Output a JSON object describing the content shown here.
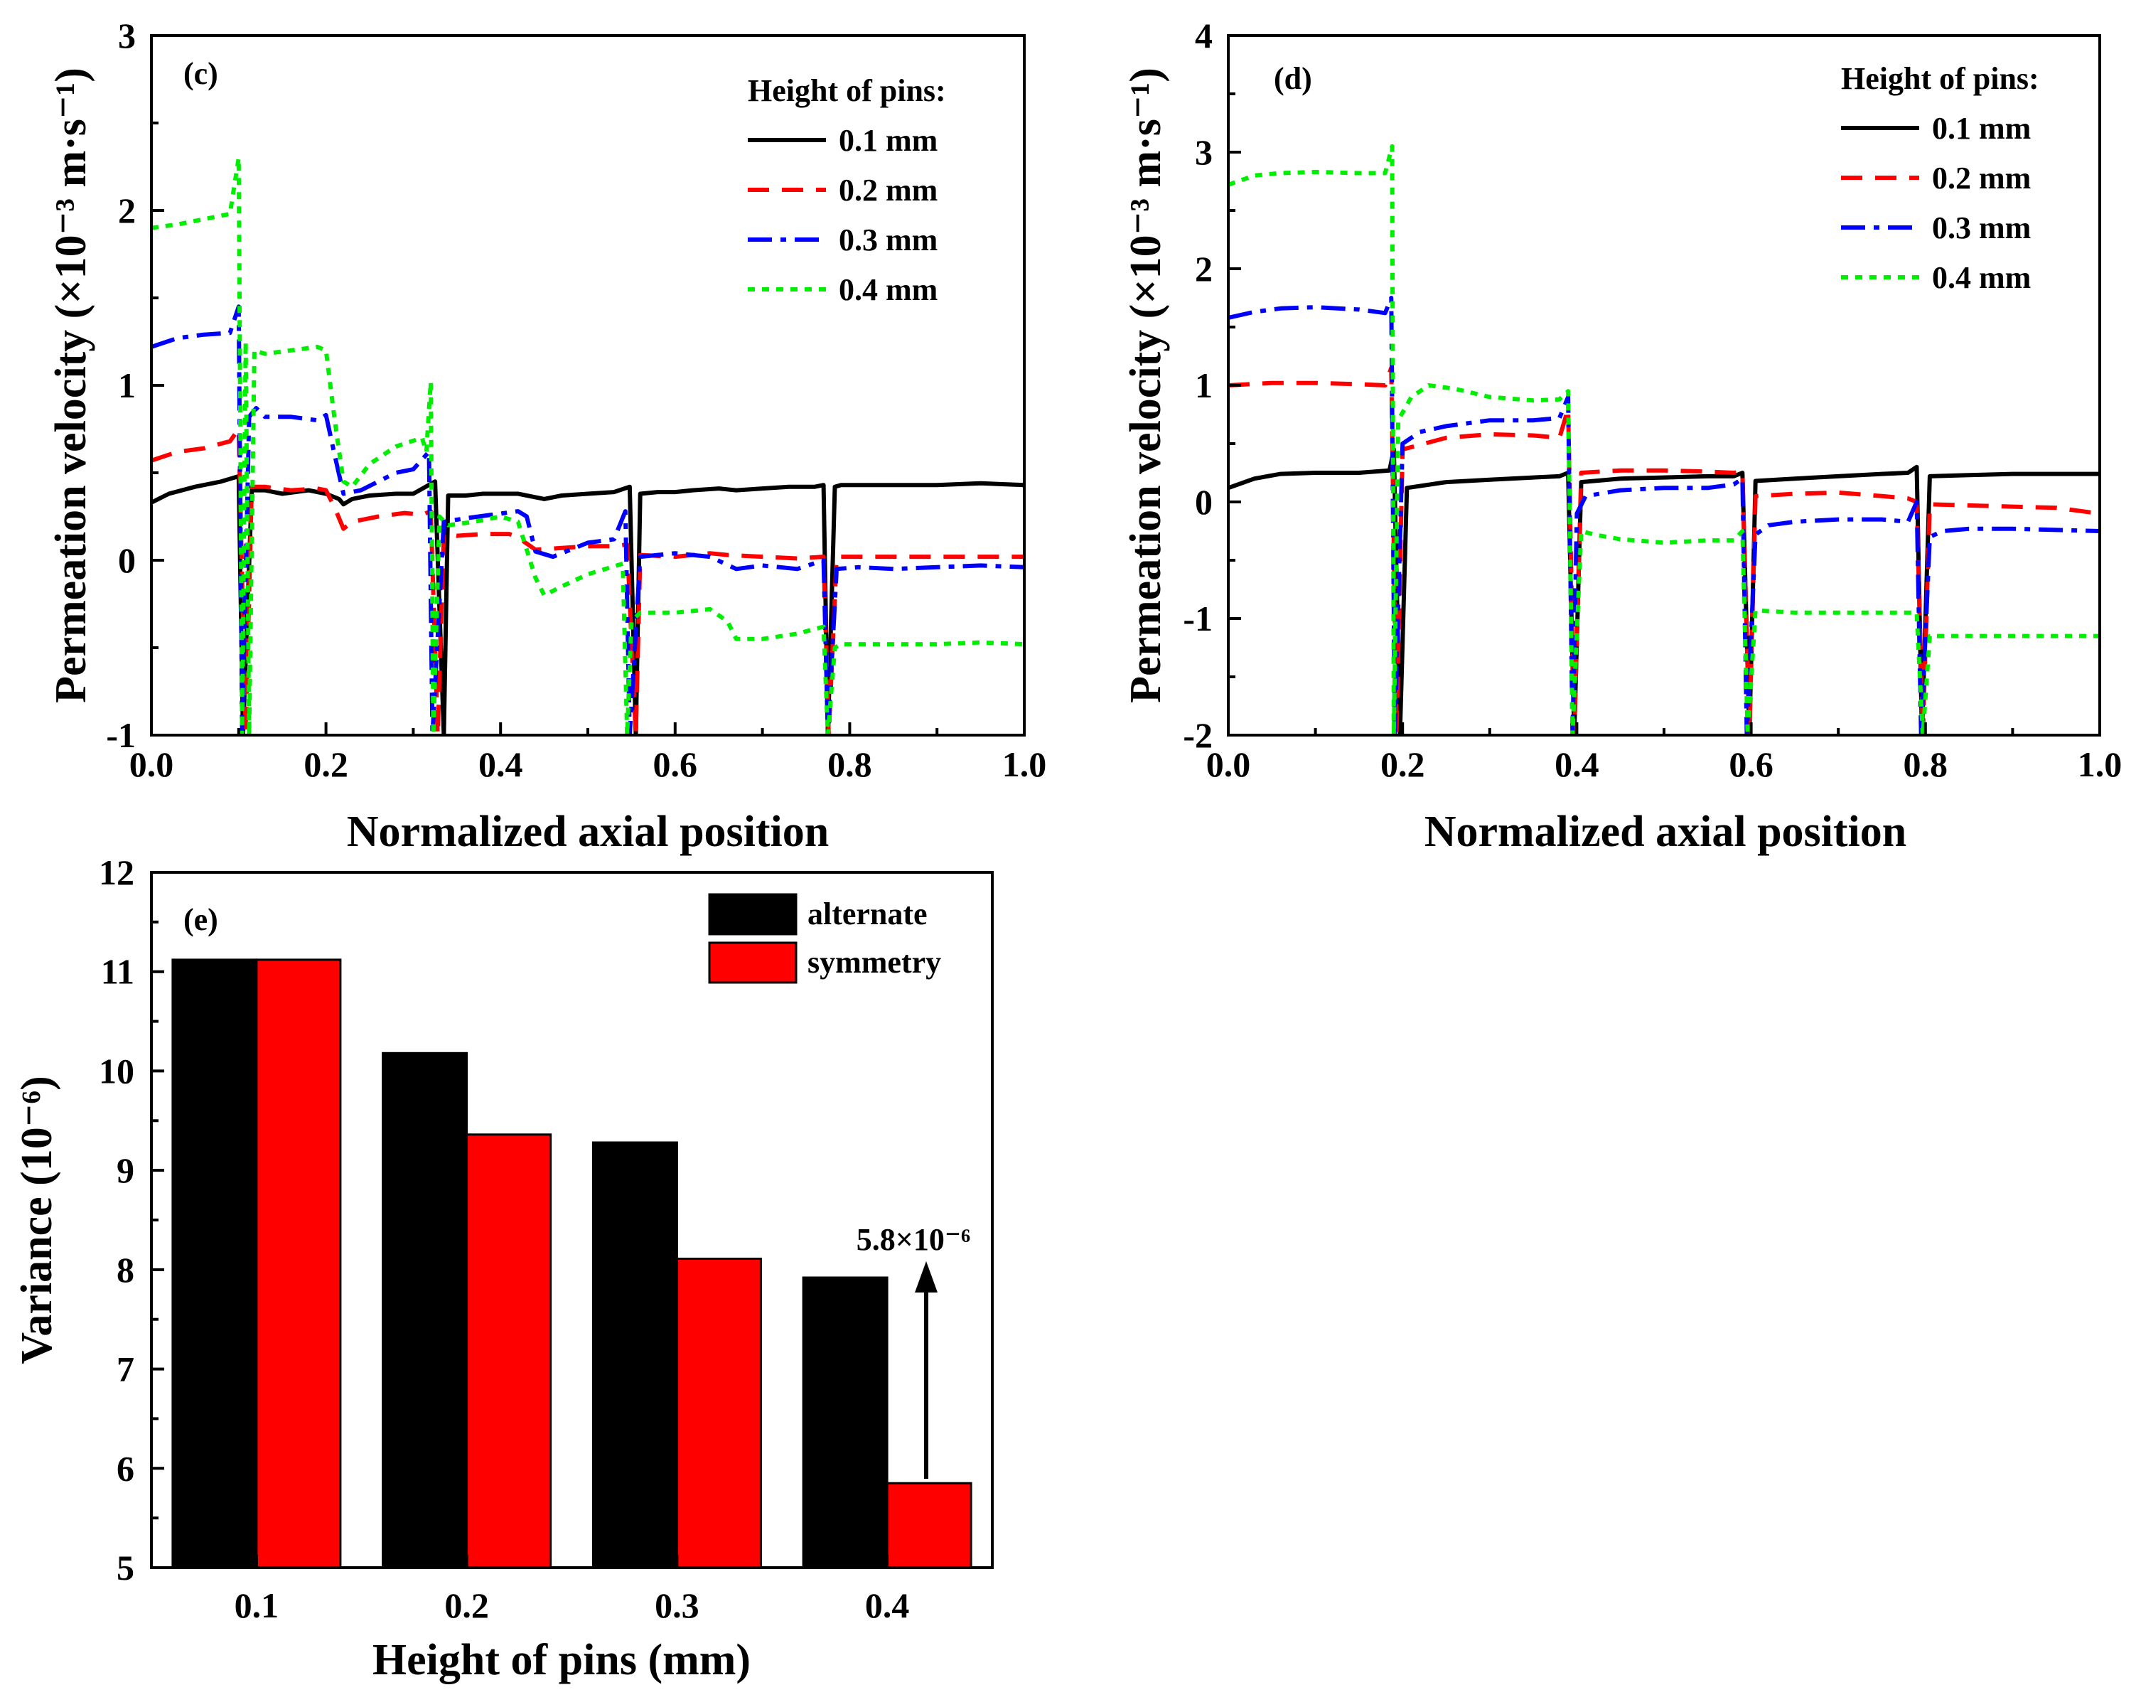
{
  "chart_data": [
    {
      "id": "c",
      "type": "line",
      "panel_label": "(c)",
      "xlabel": "Normalized axial position",
      "ylabel": "Permeation velocity (×10⁻³ m·s⁻¹)",
      "xlim": [
        0,
        1
      ],
      "ylim": [
        -1,
        3
      ],
      "xticks": [
        "0.0",
        "0.2",
        "0.4",
        "0.6",
        "0.8",
        "1.0"
      ],
      "yticks": [
        "-1",
        "0",
        "1",
        "2",
        "3"
      ],
      "legend_title": "Height of pins:",
      "legend_position": "top-right",
      "series": [
        {
          "name": "0.1 mm",
          "color": "#000000",
          "dash": "solid",
          "x": [
            0.0,
            0.02,
            0.05,
            0.08,
            0.1,
            0.105,
            0.115,
            0.13,
            0.15,
            0.18,
            0.2,
            0.215,
            0.22,
            0.23,
            0.25,
            0.28,
            0.3,
            0.325,
            0.335,
            0.34,
            0.36,
            0.38,
            0.4,
            0.42,
            0.44,
            0.45,
            0.47,
            0.5,
            0.53,
            0.548,
            0.555,
            0.56,
            0.58,
            0.6,
            0.62,
            0.65,
            0.67,
            0.7,
            0.73,
            0.76,
            0.77,
            0.775,
            0.783,
            0.79,
            0.8,
            0.85,
            0.9,
            0.95,
            1.0
          ],
          "y": [
            0.33,
            0.38,
            0.42,
            0.45,
            0.48,
            -1,
            0.4,
            0.4,
            0.38,
            0.4,
            0.38,
            0.35,
            0.32,
            0.35,
            0.37,
            0.38,
            0.38,
            0.45,
            -1,
            0.37,
            0.37,
            0.38,
            0.38,
            0.38,
            0.36,
            0.35,
            0.37,
            0.38,
            0.39,
            0.42,
            -1,
            0.38,
            0.39,
            0.39,
            0.4,
            0.41,
            0.4,
            0.41,
            0.42,
            0.42,
            0.43,
            -1,
            0.42,
            0.43,
            0.43,
            0.43,
            0.43,
            0.44,
            0.43
          ]
        },
        {
          "name": "0.2 mm",
          "color": "#ff0000",
          "dash": "dash",
          "x": [
            0.0,
            0.03,
            0.06,
            0.09,
            0.1,
            0.108,
            0.115,
            0.13,
            0.16,
            0.19,
            0.2,
            0.21,
            0.22,
            0.23,
            0.26,
            0.29,
            0.31,
            0.32,
            0.328,
            0.335,
            0.35,
            0.38,
            0.41,
            0.42,
            0.44,
            0.47,
            0.5,
            0.53,
            0.545,
            0.555,
            0.56,
            0.6,
            0.64,
            0.66,
            0.7,
            0.74,
            0.77,
            0.776,
            0.785,
            0.8,
            0.85,
            0.9,
            0.95,
            1.0
          ],
          "y": [
            0.57,
            0.62,
            0.64,
            0.68,
            0.75,
            -1,
            0.42,
            0.42,
            0.4,
            0.41,
            0.4,
            0.3,
            0.18,
            0.22,
            0.25,
            0.27,
            0.26,
            0.28,
            -1,
            0.15,
            0.14,
            0.15,
            0.15,
            0.13,
            0.06,
            0.07,
            0.08,
            0.08,
            0.09,
            -1,
            0.03,
            0.02,
            0.04,
            0.03,
            0.02,
            0.01,
            0.02,
            -1,
            0.02,
            0.02,
            0.02,
            0.02,
            0.02,
            0.02
          ]
        },
        {
          "name": "0.3 mm",
          "color": "#0000ff",
          "dash": "dashdot",
          "x": [
            0.0,
            0.03,
            0.06,
            0.09,
            0.1,
            0.104,
            0.112,
            0.12,
            0.13,
            0.16,
            0.19,
            0.2,
            0.21,
            0.22,
            0.24,
            0.28,
            0.3,
            0.318,
            0.322,
            0.335,
            0.36,
            0.39,
            0.42,
            0.43,
            0.44,
            0.46,
            0.5,
            0.53,
            0.543,
            0.548,
            0.56,
            0.6,
            0.64,
            0.67,
            0.7,
            0.74,
            0.77,
            0.775,
            0.785,
            0.81,
            0.85,
            0.9,
            0.95,
            1.0
          ],
          "y": [
            1.22,
            1.27,
            1.29,
            1.3,
            1.45,
            -1,
            0.82,
            0.87,
            0.82,
            0.82,
            0.8,
            0.83,
            0.6,
            0.38,
            0.4,
            0.5,
            0.52,
            0.62,
            -1,
            0.22,
            0.24,
            0.26,
            0.28,
            0.25,
            0.05,
            0.02,
            0.1,
            0.12,
            0.28,
            -1,
            0.02,
            0.04,
            0.02,
            -0.05,
            -0.03,
            -0.05,
            0.0,
            -1,
            -0.05,
            -0.04,
            -0.05,
            -0.04,
            -0.03,
            -0.04
          ]
        },
        {
          "name": "0.4 mm",
          "color": "#00ee00",
          "dash": "dot",
          "x": [
            0.0,
            0.03,
            0.06,
            0.09,
            0.1,
            0.104,
            0.108,
            0.112,
            0.118,
            0.13,
            0.16,
            0.19,
            0.2,
            0.21,
            0.22,
            0.23,
            0.25,
            0.28,
            0.31,
            0.315,
            0.32,
            0.323,
            0.33,
            0.34,
            0.37,
            0.4,
            0.42,
            0.44,
            0.45,
            0.47,
            0.5,
            0.52,
            0.54,
            0.545,
            0.55,
            0.56,
            0.6,
            0.64,
            0.66,
            0.67,
            0.7,
            0.74,
            0.77,
            0.775,
            0.783,
            0.79,
            0.85,
            0.9,
            0.95,
            1.0
          ],
          "y": [
            1.9,
            1.92,
            1.95,
            1.98,
            2.3,
            -1,
            1.25,
            -1,
            1.2,
            1.18,
            1.2,
            1.22,
            1.2,
            0.8,
            0.45,
            0.42,
            0.55,
            0.65,
            0.7,
            0.62,
            1.02,
            -1,
            0.25,
            0.2,
            0.22,
            0.25,
            0.22,
            -0.1,
            -0.2,
            -0.15,
            -0.08,
            -0.05,
            -0.02,
            -1,
            -0.35,
            -0.3,
            -0.3,
            -0.28,
            -0.35,
            -0.45,
            -0.45,
            -0.42,
            -0.38,
            -1,
            -0.5,
            -0.48,
            -0.48,
            -0.48,
            -0.47,
            -0.48
          ]
        }
      ]
    },
    {
      "id": "d",
      "type": "line",
      "panel_label": "(d)",
      "xlabel": "Normalized axial position",
      "ylabel": "Permeation velocity (×10⁻³ m·s⁻¹)",
      "xlim": [
        0,
        1
      ],
      "ylim": [
        -2,
        4
      ],
      "xticks": [
        "0.0",
        "0.2",
        "0.4",
        "0.6",
        "0.8",
        "1.0"
      ],
      "yticks": [
        "-2",
        "-1",
        "0",
        "1",
        "2",
        "3",
        "4"
      ],
      "legend_title": "Height of pins:",
      "legend_position": "top-right",
      "series": [
        {
          "name": "0.1 mm",
          "color": "#000000",
          "dash": "solid",
          "x": [
            0.0,
            0.03,
            0.06,
            0.1,
            0.15,
            0.185,
            0.19,
            0.197,
            0.205,
            0.25,
            0.3,
            0.35,
            0.38,
            0.39,
            0.397,
            0.405,
            0.45,
            0.5,
            0.55,
            0.58,
            0.59,
            0.598,
            0.605,
            0.65,
            0.7,
            0.75,
            0.78,
            0.79,
            0.796,
            0.805,
            0.85,
            0.9,
            0.95,
            1.0
          ],
          "y": [
            0.12,
            0.2,
            0.24,
            0.25,
            0.25,
            0.27,
            0.45,
            -2,
            0.12,
            0.17,
            0.19,
            0.21,
            0.22,
            0.25,
            -2,
            0.17,
            0.2,
            0.21,
            0.22,
            0.22,
            0.25,
            -2,
            0.18,
            0.2,
            0.22,
            0.24,
            0.25,
            0.3,
            -2,
            0.22,
            0.23,
            0.24,
            0.24,
            0.24
          ]
        },
        {
          "name": "0.2 mm",
          "color": "#ff0000",
          "dash": "dash",
          "x": [
            0.0,
            0.05,
            0.1,
            0.15,
            0.18,
            0.187,
            0.193,
            0.2,
            0.25,
            0.3,
            0.35,
            0.38,
            0.39,
            0.397,
            0.405,
            0.45,
            0.5,
            0.55,
            0.58,
            0.59,
            0.598,
            0.605,
            0.65,
            0.7,
            0.75,
            0.78,
            0.79,
            0.797,
            0.805,
            0.85,
            0.9,
            0.95,
            1.0
          ],
          "y": [
            1.0,
            1.02,
            1.02,
            1.01,
            1.0,
            1.15,
            -2,
            0.45,
            0.55,
            0.58,
            0.57,
            0.55,
            0.8,
            -2,
            0.25,
            0.27,
            0.27,
            0.26,
            0.25,
            0.26,
            -2,
            0.05,
            0.07,
            0.08,
            0.05,
            0.03,
            0.0,
            -2,
            -0.02,
            -0.03,
            -0.04,
            -0.05,
            -0.1
          ]
        },
        {
          "name": "0.3 mm",
          "color": "#0000ff",
          "dash": "dashdot",
          "x": [
            0.0,
            0.03,
            0.06,
            0.1,
            0.15,
            0.18,
            0.187,
            0.191,
            0.2,
            0.22,
            0.25,
            0.3,
            0.35,
            0.38,
            0.39,
            0.395,
            0.4,
            0.41,
            0.45,
            0.5,
            0.55,
            0.58,
            0.59,
            0.595,
            0.605,
            0.62,
            0.65,
            0.7,
            0.75,
            0.78,
            0.79,
            0.795,
            0.805,
            0.82,
            0.85,
            0.9,
            0.95,
            1.0
          ],
          "y": [
            1.58,
            1.63,
            1.66,
            1.67,
            1.65,
            1.62,
            1.75,
            -2,
            0.5,
            0.6,
            0.65,
            0.7,
            0.7,
            0.72,
            0.9,
            -2,
            -0.1,
            0.05,
            0.1,
            0.12,
            0.12,
            0.15,
            0.2,
            -2,
            -0.28,
            -0.2,
            -0.17,
            -0.15,
            -0.15,
            -0.17,
            0.0,
            -2,
            -0.3,
            -0.25,
            -0.23,
            -0.23,
            -0.24,
            -0.25
          ]
        },
        {
          "name": "0.4 mm",
          "color": "#00ee00",
          "dash": "dot",
          "x": [
            0.0,
            0.03,
            0.06,
            0.1,
            0.15,
            0.18,
            0.188,
            0.19,
            0.195,
            0.21,
            0.23,
            0.26,
            0.3,
            0.35,
            0.38,
            0.39,
            0.395,
            0.405,
            0.42,
            0.45,
            0.5,
            0.55,
            0.58,
            0.59,
            0.596,
            0.605,
            0.65,
            0.7,
            0.75,
            0.78,
            0.79,
            0.797,
            0.805,
            0.85,
            0.9,
            0.95,
            1.0
          ],
          "y": [
            2.72,
            2.8,
            2.82,
            2.83,
            2.82,
            2.82,
            3.05,
            -2,
            0.7,
            0.9,
            1.0,
            0.97,
            0.9,
            0.87,
            0.88,
            0.95,
            -2,
            -0.25,
            -0.28,
            -0.32,
            -0.35,
            -0.33,
            -0.33,
            -0.25,
            -2,
            -0.93,
            -0.95,
            -0.95,
            -0.95,
            -0.95,
            -0.95,
            -2,
            -1.15,
            -1.15,
            -1.15,
            -1.15,
            -1.15
          ]
        }
      ]
    },
    {
      "id": "e",
      "type": "bar",
      "panel_label": "(e)",
      "xlabel": "Height of pins (mm)",
      "ylabel": "Variance (10⁻⁶)",
      "categories": [
        "0.1",
        "0.2",
        "0.3",
        "0.4"
      ],
      "ylim": [
        5,
        12
      ],
      "yticks": [
        "5",
        "6",
        "7",
        "8",
        "9",
        "10",
        "11",
        "12"
      ],
      "legend_position": "top-right",
      "series": [
        {
          "name": "alternate",
          "color": "#000000",
          "values": [
            11.12,
            10.18,
            9.28,
            7.92
          ]
        },
        {
          "name": "symmetry",
          "color": "#ff0000",
          "values": [
            11.12,
            9.36,
            8.11,
            5.85
          ]
        }
      ],
      "annotation": "5.8×10⁻⁶"
    }
  ]
}
